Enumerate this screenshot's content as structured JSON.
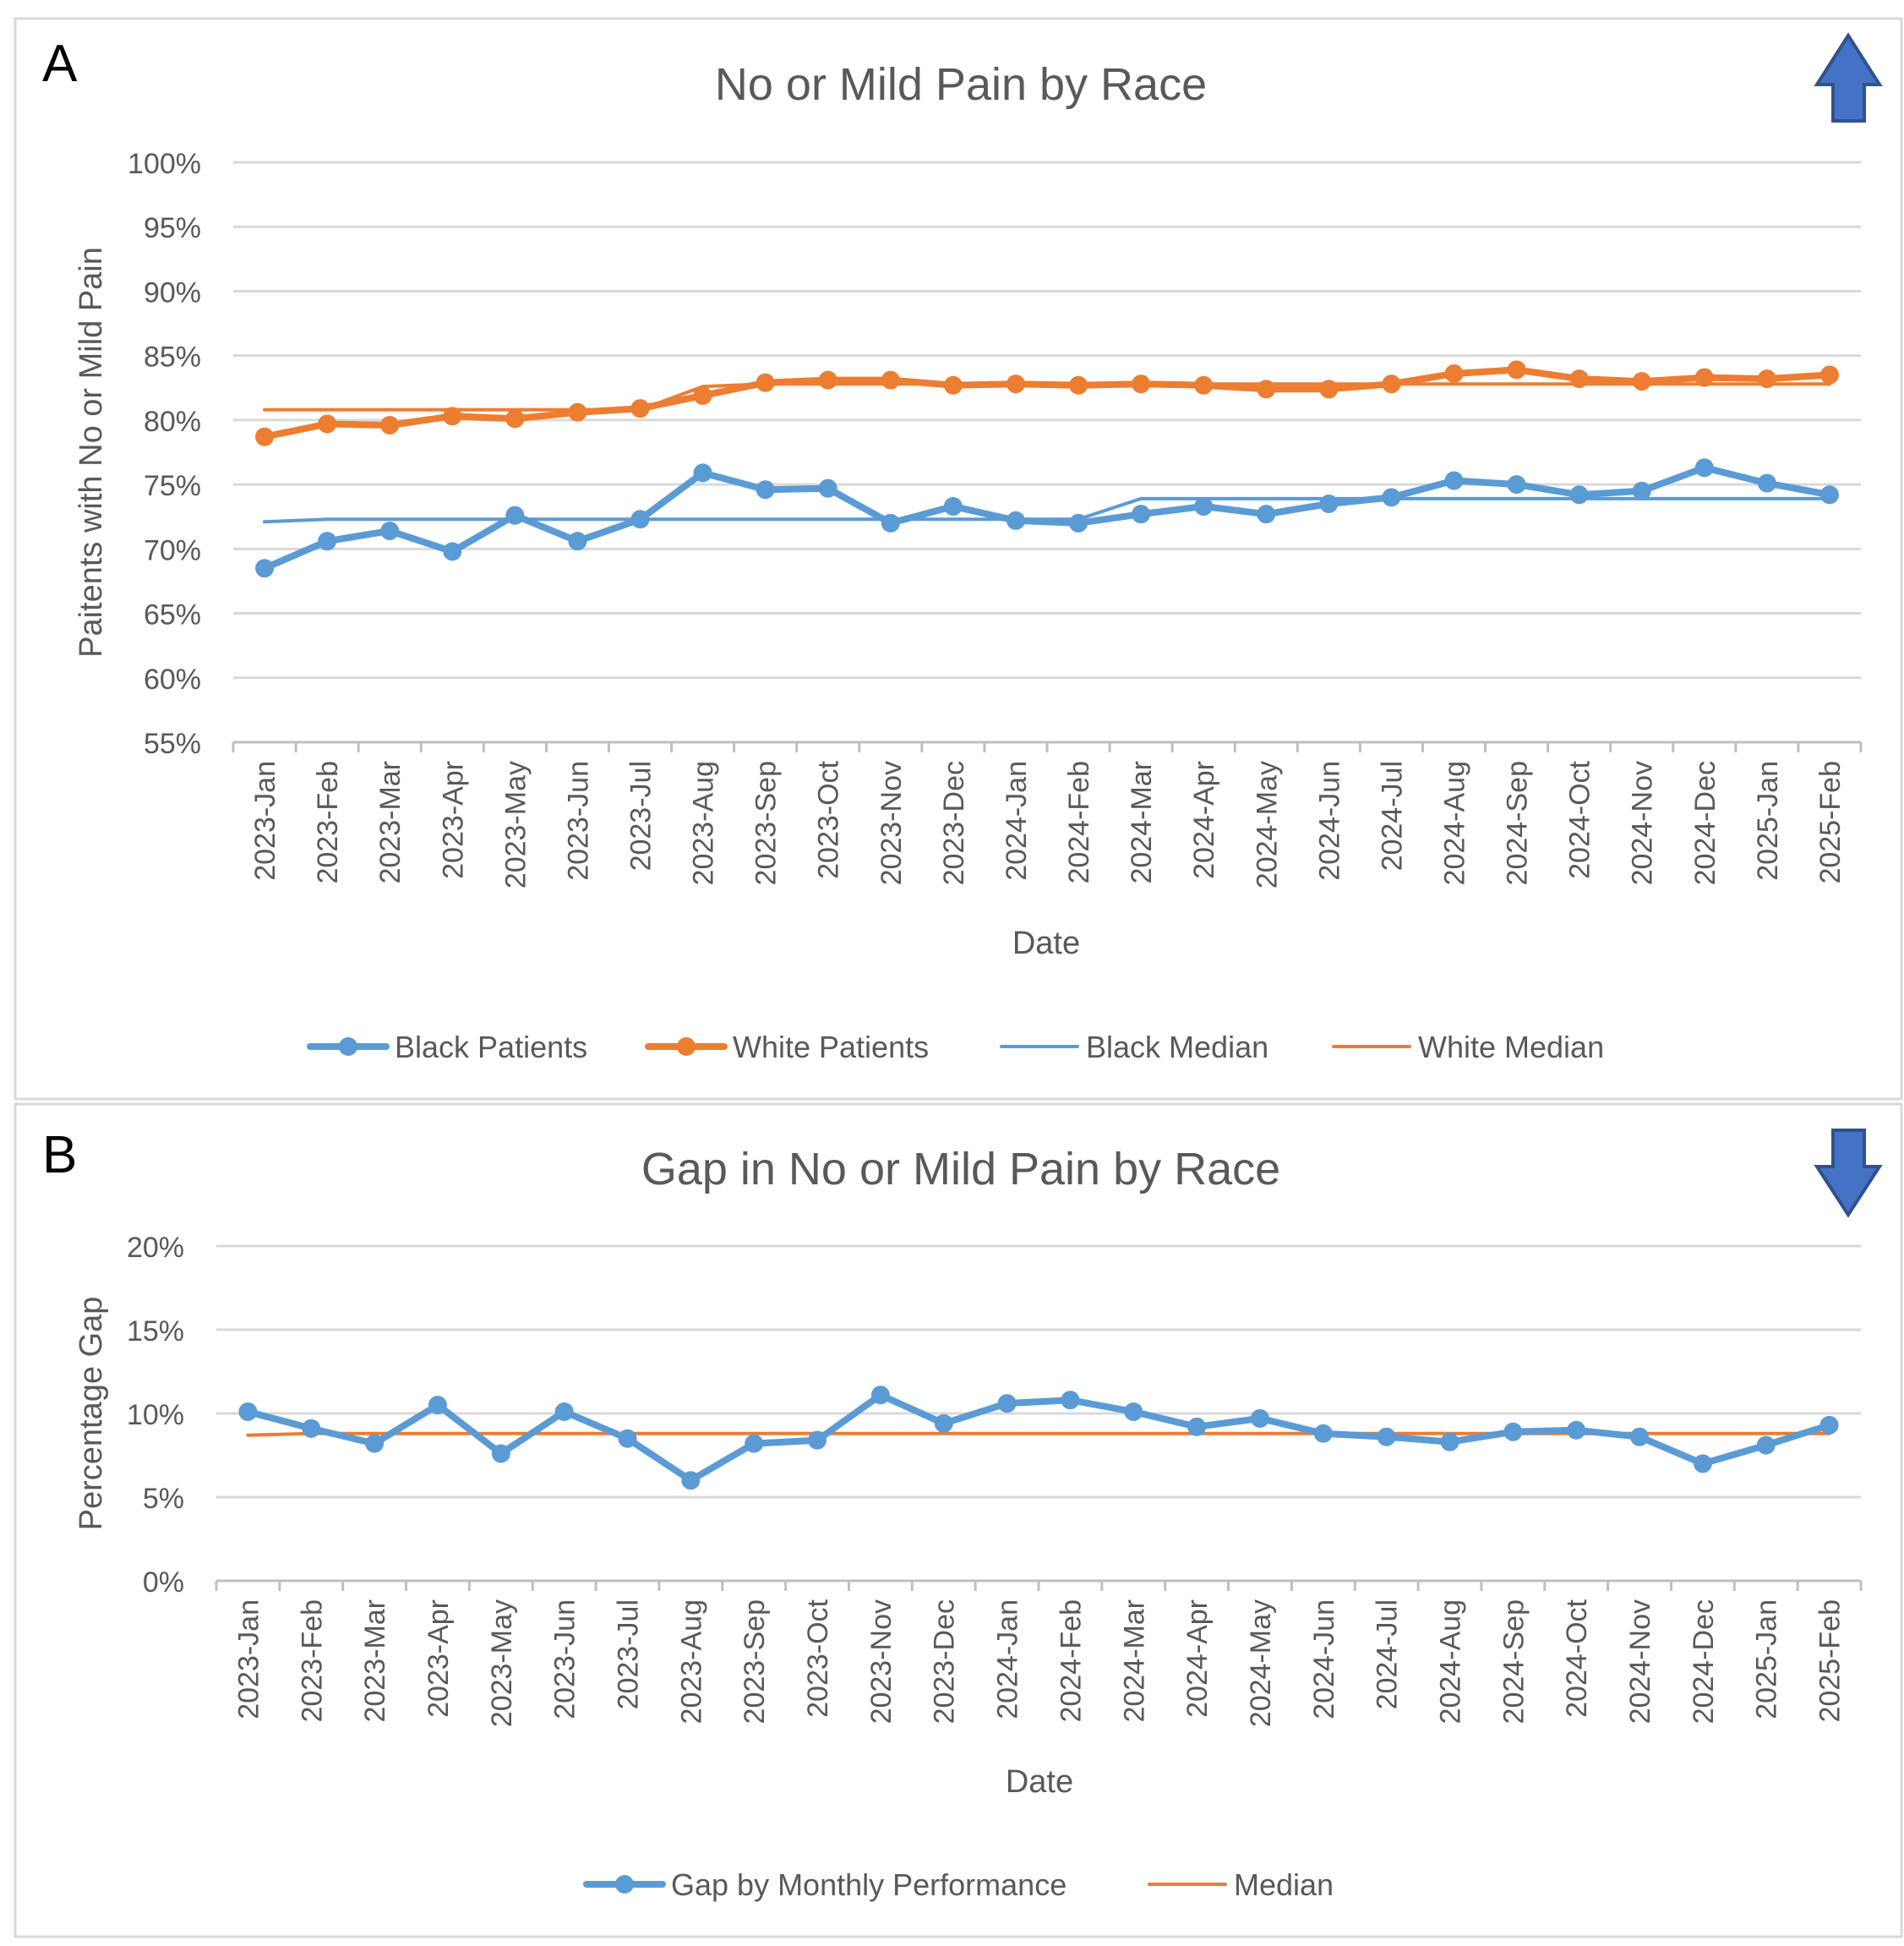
{
  "panels": [
    {
      "letter": "A",
      "arrow": "up-arrow-icon",
      "chart_data": {
        "type": "line",
        "title": "No or Mild Pain by Race",
        "xlabel": "Date",
        "ylabel": "Paitents with No or Mild Pain",
        "ylim": [
          55,
          100
        ],
        "y_ticks": [
          "55%",
          "60%",
          "65%",
          "70%",
          "75%",
          "80%",
          "85%",
          "90%",
          "95%",
          "100%"
        ],
        "grid": true,
        "legend": "bottom",
        "categories": [
          "2023-Jan",
          "2023-Feb",
          "2023-Mar",
          "2023-Apr",
          "2023-May",
          "2023-Jun",
          "2023-Jul",
          "2023-Aug",
          "2023-Sep",
          "2023-Oct",
          "2023-Nov",
          "2023-Dec",
          "2024-Jan",
          "2024-Feb",
          "2024-Mar",
          "2024-Apr",
          "2024-May",
          "2024-Jun",
          "2024-Jul",
          "2024-Aug",
          "2024-Sep",
          "2024-Oct",
          "2024-Nov",
          "2024-Dec",
          "2025-Jan",
          "2025-Feb"
        ],
        "series": [
          {
            "name": "Black Patients",
            "color": "#5B9BD5",
            "style": "line-marker",
            "values": [
              68.5,
              70.6,
              71.4,
              69.8,
              72.6,
              70.6,
              72.3,
              75.9,
              74.6,
              74.7,
              72.0,
              73.3,
              72.2,
              72.0,
              72.7,
              73.3,
              72.7,
              73.5,
              74.0,
              75.3,
              75.0,
              74.2,
              74.5,
              76.3,
              75.1,
              74.2
            ]
          },
          {
            "name": "White Patients",
            "color": "#ED7D31",
            "style": "line-marker",
            "values": [
              78.7,
              79.7,
              79.6,
              80.3,
              80.1,
              80.6,
              80.9,
              81.9,
              82.9,
              83.1,
              83.1,
              82.7,
              82.8,
              82.7,
              82.8,
              82.7,
              82.4,
              82.4,
              82.8,
              83.6,
              83.9,
              83.2,
              83.0,
              83.3,
              83.2,
              83.5
            ]
          },
          {
            "name": "Black Median",
            "color": "#5B9BD5",
            "style": "line",
            "values": [
              72.1,
              72.3,
              72.3,
              72.3,
              72.3,
              72.3,
              72.3,
              72.3,
              72.3,
              72.3,
              72.3,
              72.3,
              72.3,
              72.3,
              73.9,
              73.9,
              73.9,
              73.9,
              73.9,
              73.9,
              73.9,
              73.9,
              73.9,
              73.9,
              73.9,
              73.9
            ]
          },
          {
            "name": "White Median",
            "color": "#ED7D31",
            "style": "line",
            "values": [
              80.8,
              80.8,
              80.8,
              80.8,
              80.8,
              80.8,
              80.8,
              82.6,
              82.8,
              82.8,
              82.8,
              82.8,
              82.8,
              82.8,
              82.8,
              82.8,
              82.8,
              82.8,
              82.8,
              82.8,
              82.8,
              82.8,
              82.8,
              82.8,
              82.8,
              82.8
            ]
          }
        ]
      }
    },
    {
      "letter": "B",
      "arrow": "down-arrow-icon",
      "chart_data": {
        "type": "line",
        "title": "Gap in No or Mild Pain by Race",
        "xlabel": "Date",
        "ylabel": "Percentage Gap",
        "ylim": [
          0,
          20
        ],
        "y_ticks": [
          "0%",
          "5%",
          "10%",
          "15%",
          "20%"
        ],
        "grid": true,
        "legend": "bottom",
        "categories": [
          "2023-Jan",
          "2023-Feb",
          "2023-Mar",
          "2023-Apr",
          "2023-May",
          "2023-Jun",
          "2023-Jul",
          "2023-Aug",
          "2023-Sep",
          "2023-Oct",
          "2023-Nov",
          "2023-Dec",
          "2024-Jan",
          "2024-Feb",
          "2024-Mar",
          "2024-Apr",
          "2024-May",
          "2024-Jun",
          "2024-Jul",
          "2024-Aug",
          "2024-Sep",
          "2024-Oct",
          "2024-Nov",
          "2024-Dec",
          "2025-Jan",
          "2025-Feb"
        ],
        "series": [
          {
            "name": "Gap by Monthly Performance",
            "color": "#5B9BD5",
            "style": "line-marker",
            "values": [
              10.1,
              9.1,
              8.2,
              10.5,
              7.6,
              10.1,
              8.5,
              6.0,
              8.2,
              8.4,
              11.1,
              9.4,
              10.6,
              10.8,
              10.1,
              9.2,
              9.7,
              8.8,
              8.6,
              8.3,
              8.9,
              9.0,
              8.6,
              7.0,
              8.1,
              9.3
            ]
          },
          {
            "name": "Median",
            "color": "#ED7D31",
            "style": "line",
            "values": [
              8.7,
              8.8,
              8.8,
              8.8,
              8.8,
              8.8,
              8.8,
              8.8,
              8.8,
              8.8,
              8.8,
              8.8,
              8.8,
              8.8,
              8.8,
              8.8,
              8.8,
              8.8,
              8.8,
              8.8,
              8.8,
              8.8,
              8.8,
              8.8,
              8.8,
              8.8
            ]
          }
        ]
      }
    }
  ]
}
